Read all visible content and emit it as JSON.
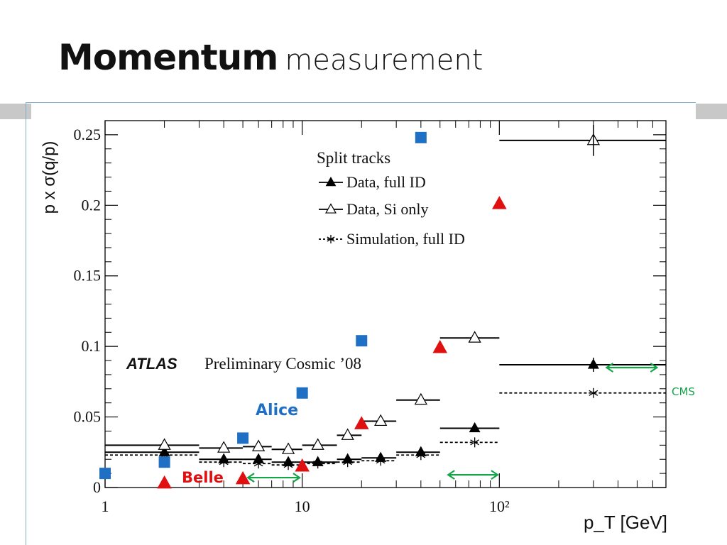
{
  "slide": {
    "title_bold": "Momentum",
    "title_rest": "measurement"
  },
  "chart_data": {
    "type": "scatter",
    "xlabel": "p_T [GeV]",
    "ylabel": "p x σ(q/p)",
    "xscale": "log",
    "xlim": [
      1,
      700
    ],
    "ylim": [
      0,
      0.26
    ],
    "yticks": [
      "0",
      "0.05",
      "0.1",
      "0.15",
      "0.2",
      "0.25"
    ],
    "xticks": [
      "1",
      "10",
      "10²"
    ],
    "legend_title": "Split tracks",
    "legend_placement": "top-center",
    "experiment_label": "ATLAS",
    "experiment_text": "Preliminary Cosmic ’08",
    "series": [
      {
        "name": "Data, full ID",
        "marker": "filled-triangle",
        "line": "solid",
        "color": "#000000",
        "bins": [
          {
            "x": 2,
            "xlo": 1,
            "xhi": 3,
            "y": 0.025
          },
          {
            "x": 4,
            "xlo": 3,
            "xhi": 5,
            "y": 0.02
          },
          {
            "x": 6,
            "xlo": 5,
            "xhi": 7,
            "y": 0.02
          },
          {
            "x": 8.5,
            "xlo": 7,
            "xhi": 10,
            "y": 0.018
          },
          {
            "x": 12,
            "xlo": 10,
            "xhi": 15,
            "y": 0.018
          },
          {
            "x": 17,
            "xlo": 15,
            "xhi": 20,
            "y": 0.02
          },
          {
            "x": 25,
            "xlo": 20,
            "xhi": 30,
            "y": 0.021
          },
          {
            "x": 40,
            "xlo": 30,
            "xhi": 50,
            "y": 0.025
          },
          {
            "x": 75,
            "xlo": 50,
            "xhi": 100,
            "y": 0.042
          },
          {
            "x": 300,
            "xlo": 100,
            "xhi": 700,
            "y": 0.087
          }
        ]
      },
      {
        "name": "Data, Si only",
        "marker": "open-triangle",
        "line": "solid",
        "color": "#000000",
        "bins": [
          {
            "x": 2,
            "xlo": 1,
            "xhi": 3,
            "y": 0.03
          },
          {
            "x": 4,
            "xlo": 3,
            "xhi": 5,
            "y": 0.028
          },
          {
            "x": 6,
            "xlo": 5,
            "xhi": 7,
            "y": 0.029
          },
          {
            "x": 8.5,
            "xlo": 7,
            "xhi": 10,
            "y": 0.027
          },
          {
            "x": 12,
            "xlo": 10,
            "xhi": 15,
            "y": 0.03
          },
          {
            "x": 17,
            "xlo": 15,
            "xhi": 20,
            "y": 0.037
          },
          {
            "x": 25,
            "xlo": 20,
            "xhi": 30,
            "y": 0.047
          },
          {
            "x": 40,
            "xlo": 30,
            "xhi": 50,
            "y": 0.062
          },
          {
            "x": 75,
            "xlo": 50,
            "xhi": 100,
            "y": 0.106
          },
          {
            "x": 300,
            "xlo": 100,
            "xhi": 700,
            "y": 0.246
          }
        ]
      },
      {
        "name": "Simulation, full ID",
        "marker": "star",
        "line": "dashed",
        "color": "#000000",
        "bins": [
          {
            "x": 2,
            "xlo": 1,
            "xhi": 3,
            "y": 0.023
          },
          {
            "x": 4,
            "xlo": 3,
            "xhi": 5,
            "y": 0.018
          },
          {
            "x": 6,
            "xlo": 5,
            "xhi": 7,
            "y": 0.017
          },
          {
            "x": 8.5,
            "xlo": 7,
            "xhi": 10,
            "y": 0.016
          },
          {
            "x": 12,
            "xlo": 10,
            "xhi": 15,
            "y": 0.017
          },
          {
            "x": 17,
            "xlo": 15,
            "xhi": 20,
            "y": 0.018
          },
          {
            "x": 25,
            "xlo": 20,
            "xhi": 30,
            "y": 0.019
          },
          {
            "x": 40,
            "xlo": 30,
            "xhi": 50,
            "y": 0.023
          },
          {
            "x": 75,
            "xlo": 50,
            "xhi": 100,
            "y": 0.032
          },
          {
            "x": 300,
            "xlo": 100,
            "xhi": 700,
            "y": 0.067
          }
        ]
      },
      {
        "name": "Alice",
        "marker": "square",
        "color": "#1f6fc4",
        "points": [
          {
            "x": 1,
            "y": 0.01
          },
          {
            "x": 2,
            "y": 0.018
          },
          {
            "x": 5,
            "y": 0.035
          },
          {
            "x": 10,
            "y": 0.067
          },
          {
            "x": 20,
            "y": 0.104
          },
          {
            "x": 40,
            "y": 0.248
          }
        ]
      },
      {
        "name": "Belle",
        "marker": "red-triangle",
        "color": "#e01010",
        "points": [
          {
            "x": 2,
            "y": 0.003
          },
          {
            "x": 5,
            "y": 0.006
          },
          {
            "x": 10,
            "y": 0.015
          },
          {
            "x": 20,
            "y": 0.045
          },
          {
            "x": 50,
            "y": 0.099
          },
          {
            "x": 100,
            "y": 0.201
          }
        ]
      }
    ],
    "annotations": {
      "alice_label": "Alice",
      "alice_color": "#1f6fc4",
      "belle_label": "Belle",
      "belle_color": "#e01010",
      "cms_label": "CMS",
      "arrow_color": "#17a34a",
      "arrows": [
        {
          "x1": 5.3,
          "x2": 9.7,
          "y": 0.007
        },
        {
          "x1": 55,
          "x2": 98,
          "y": 0.009
        },
        {
          "x1": 350,
          "x2": 630,
          "y": 0.085
        }
      ]
    }
  }
}
